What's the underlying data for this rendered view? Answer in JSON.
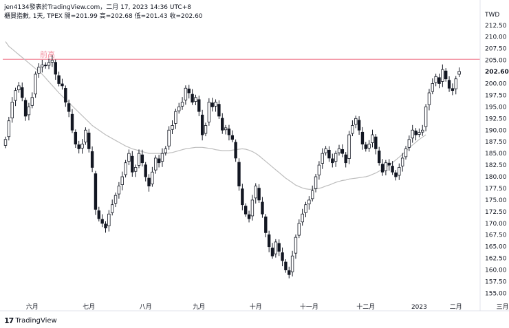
{
  "header": {
    "attribution": "jen4134發表於TradingView.com，二月 17, 2023 14:36 UTC+8",
    "symbol_line": "櫃買指數, 1天, TPEX  開=201.99  高=202.68  低=201.43  收=202.60"
  },
  "footer": {
    "logo_text": "TradingView",
    "logo_mark": "17"
  },
  "chart_data": {
    "type": "candlestick",
    "currency_label": "TWD",
    "ylim": [
      153,
      213.5
    ],
    "y_ticks": [
      155.0,
      157.5,
      160.0,
      162.5,
      165.0,
      167.5,
      170.0,
      172.5,
      175.0,
      177.5,
      180.0,
      182.5,
      185.0,
      187.5,
      190.0,
      192.5,
      195.0,
      197.5,
      200.0,
      202.5,
      205.0,
      207.5,
      210.0,
      212.5
    ],
    "y_tick_labels": [
      "155.00",
      "157.50",
      "160.00",
      "162.50",
      "165.00",
      "167.50",
      "170.00",
      "172.50",
      "175.00",
      "177.50",
      "180.00",
      "182.50",
      "185.00",
      "187.50",
      "190.00",
      "192.50",
      "195.00",
      "197.50",
      "200.00",
      "",
      "205.00",
      "207.50",
      "210.00",
      "212.50"
    ],
    "x_labels": [
      {
        "label": "六月",
        "index": 8
      },
      {
        "label": "七月",
        "index": 25
      },
      {
        "label": "八月",
        "index": 42
      },
      {
        "label": "九月",
        "index": 58
      },
      {
        "label": "十月",
        "index": 75
      },
      {
        "label": "十一月",
        "index": 91
      },
      {
        "label": "十二月",
        "index": 108
      },
      {
        "label": "2023",
        "index": 124
      },
      {
        "label": "二月",
        "index": 135
      },
      {
        "label": "三月",
        "index": 149
      }
    ],
    "last_price": 202.6,
    "last_price_label": "202.60",
    "resistance": {
      "label": "前高",
      "value": 205.2,
      "color": "#f28b9b"
    },
    "colors": {
      "up_fill": "#ffffff",
      "down_fill": "#131722",
      "wick": "#131722",
      "ma": "#bdbdbd"
    },
    "closes": [
      188.0,
      192.0,
      196.0,
      198.5,
      199.5,
      197.0,
      193.0,
      195.0,
      197.0,
      202.0,
      203.5,
      204.0,
      203.8,
      204.5,
      205.0,
      202.0,
      200.0,
      199.5,
      196.0,
      194.0,
      190.0,
      187.0,
      186.0,
      187.0,
      190.0,
      186.0,
      182.0,
      173.0,
      171.0,
      170.0,
      169.0,
      172.0,
      174.0,
      176.0,
      178.0,
      180.0,
      183.0,
      185.0,
      181.0,
      182.0,
      185.0,
      183.0,
      180.0,
      178.0,
      181.0,
      184.0,
      183.0,
      185.0,
      186.0,
      190.0,
      191.0,
      194.0,
      195.0,
      196.0,
      199.0,
      198.0,
      196.0,
      197.0,
      194.0,
      189.0,
      191.0,
      196.0,
      195.0,
      196.0,
      193.0,
      190.0,
      190.5,
      189.0,
      188.0,
      184.0,
      178.0,
      174.0,
      172.0,
      171.0,
      175.0,
      178.0,
      175.0,
      172.0,
      168.0,
      165.0,
      163.0,
      166.0,
      164.0,
      162.0,
      160.0,
      159.0,
      163.0,
      167.0,
      170.0,
      172.0,
      174.0,
      175.0,
      177.0,
      180.0,
      182.5,
      185.0,
      186.0,
      184.0,
      183.0,
      185.0,
      186.0,
      185.0,
      183.0,
      189.0,
      191.0,
      192.5,
      190.0,
      187.0,
      186.0,
      187.0,
      189.0,
      186.0,
      183.0,
      181.0,
      183.0,
      182.5,
      181.0,
      180.0,
      182.0,
      184.0,
      186.0,
      188.0,
      190.0,
      189.0,
      189.5,
      190.0,
      195.0,
      198.0,
      200.0,
      201.5,
      200.0,
      203.0,
      201.0,
      199.0,
      198.5,
      201.0,
      202.6
    ],
    "ma_values": [
      209,
      208,
      207.4,
      206.8,
      206.2,
      205.6,
      205,
      204.4,
      203.8,
      203.2,
      202.6,
      202,
      201.2,
      200.4,
      199.6,
      198.8,
      198,
      197.3,
      196.6,
      195.9,
      195.2,
      194.5,
      193.8,
      193.1,
      192.4,
      191.7,
      191,
      190.5,
      190,
      189.5,
      189,
      188.6,
      188.2,
      187.8,
      187.4,
      187,
      186.6,
      186.3,
      186,
      185.8,
      185.6,
      185.4,
      185.2,
      185,
      185,
      185,
      185,
      185,
      185,
      185.1,
      185.2,
      185.4,
      185.6,
      185.8,
      186,
      186.1,
      186.2,
      186.3,
      186.3,
      186.3,
      186.2,
      186.1,
      186,
      185.8,
      185.7,
      185.6,
      185.6,
      185.6,
      185.7,
      185.8,
      185.9,
      186,
      185.9,
      185.7,
      185.4,
      185,
      184.5,
      183.9,
      183.3,
      182.7,
      182.1,
      181.5,
      180.9,
      180.3,
      179.7,
      179.2,
      178.7,
      178.2,
      177.9,
      177.6,
      177.4,
      177.3,
      177.3,
      177.4,
      177.5,
      177.7,
      178,
      178.2,
      178.5,
      178.8,
      179,
      179.2,
      179.3,
      179.5,
      179.6,
      179.7,
      179.8,
      179.9,
      180,
      180.2,
      180.5,
      180.8,
      181.2,
      181.6,
      182,
      182.5,
      183,
      183.6,
      184.2,
      184.8,
      185.5,
      186.2,
      186.8,
      187.4,
      188,
      188.5,
      189
    ]
  }
}
